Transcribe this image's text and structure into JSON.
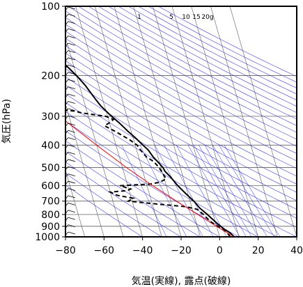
{
  "chart_data": {
    "type": "line",
    "xlabel": "気温(実線), 露点(破線)",
    "ylabel": "気圧(hPa)",
    "xlim": [
      -80,
      40
    ],
    "ylim": [
      1000,
      100
    ],
    "y_scale": "log",
    "x_ticks": [
      "−80",
      "−60",
      "−40",
      "−20",
      "0",
      "20",
      "40"
    ],
    "x_tick_values": [
      -80,
      -60,
      -40,
      -20,
      0,
      20,
      40
    ],
    "y_ticks": [
      "100",
      "200",
      "300",
      "400",
      "500",
      "600",
      "700",
      "800",
      "900",
      "1000"
    ],
    "y_tick_values": [
      100,
      200,
      300,
      400,
      500,
      600,
      700,
      800,
      900,
      1000
    ],
    "mixing_ratio_labels": [
      "1",
      "5",
      "10",
      "15",
      "20g"
    ],
    "grid": true,
    "series": [
      {
        "style": "solid",
        "color": "#000000",
        "points": [
          [
            1000,
            7.5
          ],
          [
            960,
            6
          ],
          [
            925,
            3.5
          ],
          [
            880,
            1
          ],
          [
            850,
            -0.5
          ],
          [
            800,
            -3
          ],
          [
            750,
            -6
          ],
          [
            700,
            -8
          ],
          [
            650,
            -11
          ],
          [
            600,
            -14
          ],
          [
            550,
            -16.5
          ],
          [
            520,
            -18.5
          ],
          [
            500,
            -19
          ],
          [
            470,
            -21
          ],
          [
            450,
            -22.5
          ],
          [
            420,
            -24
          ],
          [
            400,
            -26
          ],
          [
            370,
            -29
          ],
          [
            350,
            -31.5
          ],
          [
            320,
            -35
          ],
          [
            300,
            -38
          ],
          [
            270,
            -42
          ],
          [
            250,
            -44
          ],
          [
            220,
            -47
          ],
          [
            200,
            -50
          ],
          [
            180,
            -54
          ],
          [
            160,
            -58
          ],
          [
            150,
            -58.5
          ],
          [
            140,
            -60
          ],
          [
            130,
            -60
          ],
          [
            120,
            -58
          ],
          [
            115,
            -56
          ],
          [
            110,
            -59
          ],
          [
            100,
            -60
          ]
        ]
      },
      {
        "style": "dashed",
        "color": "#000000",
        "points": [
          [
            1000,
            5.5
          ],
          [
            960,
            4.5
          ],
          [
            925,
            2.5
          ],
          [
            880,
            -1
          ],
          [
            850,
            -3
          ],
          [
            800,
            -5
          ],
          [
            760,
            -7.5
          ],
          [
            740,
            -13
          ],
          [
            720,
            -28
          ],
          [
            700,
            -42
          ],
          [
            680,
            -39
          ],
          [
            660,
            -47
          ],
          [
            640,
            -50
          ],
          [
            630,
            -41
          ],
          [
            620,
            -39
          ],
          [
            600,
            -44
          ],
          [
            590,
            -28
          ],
          [
            580,
            -23
          ],
          [
            560,
            -19
          ],
          [
            530,
            -20
          ],
          [
            500,
            -21
          ],
          [
            470,
            -23
          ],
          [
            450,
            -26
          ],
          [
            420,
            -28
          ],
          [
            400,
            -29
          ],
          [
            380,
            -32
          ],
          [
            360,
            -36
          ],
          [
            350,
            -38
          ],
          [
            330,
            -43
          ],
          [
            320,
            -40
          ],
          [
            310,
            -37.5
          ],
          [
            300,
            -41
          ],
          [
            290,
            -53
          ],
          [
            285,
            -56
          ],
          [
            280,
            -65
          ]
        ]
      },
      {
        "style": "solid",
        "color": "#ff0000",
        "points": [
          [
            1000,
            7.5
          ],
          [
            900,
            0
          ],
          [
            800,
            -8
          ],
          [
            700,
            -17
          ],
          [
            600,
            -27
          ],
          [
            500,
            -38
          ],
          [
            400,
            -50
          ],
          [
            300,
            -65
          ],
          [
            250,
            -76
          ],
          [
            230,
            -80
          ]
        ]
      }
    ],
    "wind_barbs": {
      "x": -75,
      "levels": 32
    }
  }
}
